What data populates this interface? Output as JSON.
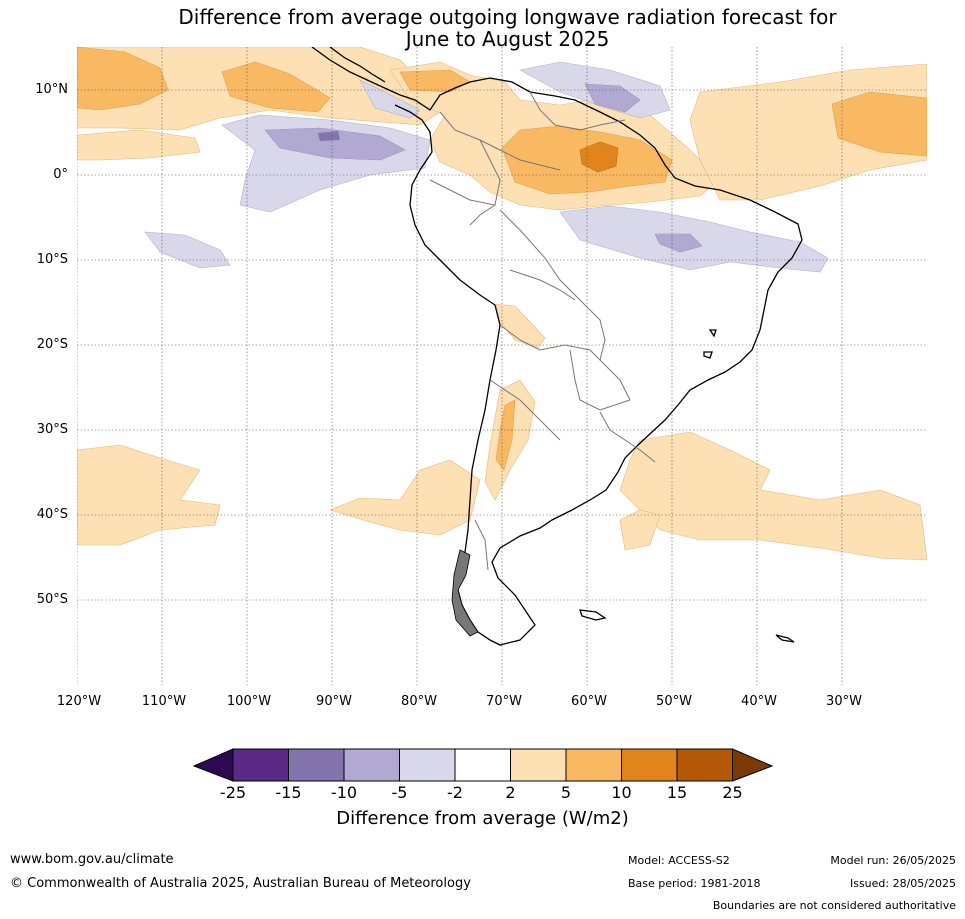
{
  "title": {
    "line1": "Difference from average outgoing longwave radiation forecast for",
    "line2": "June to August 2025"
  },
  "map": {
    "lat_labels": [
      "10°N",
      "0°",
      "10°S",
      "20°S",
      "30°S",
      "40°S",
      "50°S"
    ],
    "lon_labels": [
      "120°W",
      "110°W",
      "100°W",
      "90°W",
      "80°W",
      "70°W",
      "60°W",
      "50°W",
      "40°W",
      "30°W"
    ],
    "gridlines": true
  },
  "colorbar": {
    "title": "Difference from average (W/m2)",
    "ticks": [
      "-25",
      "-15",
      "-10",
      "-5",
      "-2",
      "2",
      "5",
      "10",
      "15",
      "25"
    ],
    "colors": [
      "#2e0854",
      "#5b2a86",
      "#8474ad",
      "#b1a9d2",
      "#d8d8ea",
      "#ffffff",
      "#fde0b4",
      "#f9b862",
      "#e0841c",
      "#b35806",
      "#7a3a06"
    ]
  },
  "footer": {
    "website": "www.bom.gov.au/climate",
    "copyright": "© Commonwealth of Australia 2025, Australian Bureau of Meteorology",
    "model": "Model: ACCESS-S2",
    "base_period": "Base period: 1981-2018",
    "model_run": "Model run: 26/05/2025",
    "issued": "Issued: 28/05/2025",
    "disclaimer": "Boundaries are not considered authoritative"
  }
}
